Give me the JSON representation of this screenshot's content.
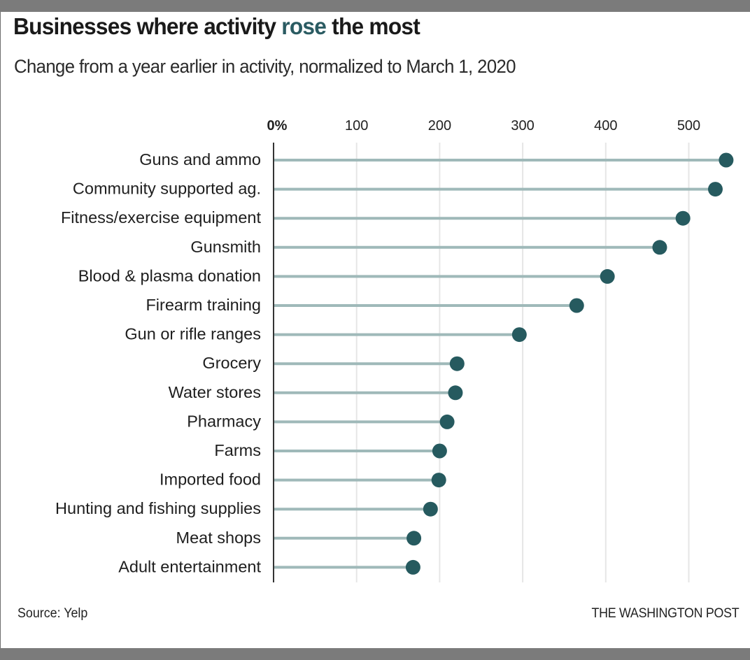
{
  "header": {
    "title_before": "Businesses where activity ",
    "title_accent": "rose",
    "title_after": " the most",
    "subtitle": "Change from a year earlier in activity, normalized to March 1, 2020"
  },
  "footer": {
    "source": "Source: Yelp",
    "credit": "THE WASHINGTON POST"
  },
  "colors": {
    "accent": "#2a5b62",
    "dot": "#265a5f",
    "stem": "#9fb9b9",
    "grid": "#e6e6e6",
    "axis": "#333333"
  },
  "chart_data": {
    "type": "lollipop",
    "title": "Businesses where activity rose the most",
    "subtitle": "Change from a year earlier in activity, normalized to March 1, 2020",
    "xlabel": "",
    "ylabel": "",
    "xlim": [
      0,
      550
    ],
    "grid": true,
    "x_ticks": [
      0,
      100,
      200,
      300,
      400,
      500
    ],
    "x_tick_labels": [
      "0%",
      "100",
      "200",
      "300",
      "400",
      "500"
    ],
    "categories": [
      "Guns and ammo",
      "Community supported ag.",
      "Fitness/exercise equipment",
      "Gunsmith",
      "Blood & plasma donation",
      "Firearm training",
      "Gun or rifle ranges",
      "Grocery",
      "Water stores",
      "Pharmacy",
      "Farms",
      "Imported food",
      "Hunting and fishing supplies",
      "Meat shops",
      "Adult entertainment"
    ],
    "values": [
      545,
      532,
      493,
      465,
      402,
      365,
      296,
      221,
      219,
      209,
      200,
      199,
      189,
      169,
      168
    ],
    "unit": "%",
    "source": "Yelp"
  }
}
